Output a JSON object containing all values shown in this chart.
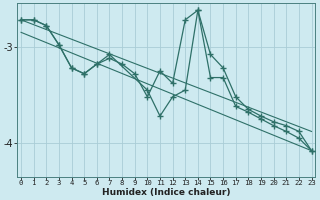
{
  "xlabel": "Humidex (Indice chaleur)",
  "background_color": "#ceeaf0",
  "grid_color": "#aacdd6",
  "line_color": "#2e7068",
  "x_ticks": [
    0,
    1,
    2,
    3,
    4,
    5,
    6,
    7,
    8,
    9,
    10,
    11,
    12,
    13,
    14,
    15,
    16,
    17,
    18,
    19,
    20,
    21,
    22,
    23
  ],
  "yticks": [
    -3,
    -4
  ],
  "ylim": [
    -4.35,
    -2.55
  ],
  "xlim": [
    -0.3,
    23.3
  ],
  "series1_x": [
    0,
    1,
    2,
    3,
    4,
    5,
    6,
    7,
    8,
    9,
    10,
    11,
    12,
    13,
    14,
    15,
    16,
    17,
    18,
    19,
    20,
    21,
    22,
    23
  ],
  "series1_y": [
    -2.72,
    -2.72,
    -2.78,
    -2.98,
    -3.22,
    -3.28,
    -3.18,
    -3.12,
    -3.18,
    -3.28,
    -3.52,
    -3.25,
    -3.38,
    -2.72,
    -2.62,
    -3.08,
    -3.22,
    -3.52,
    -3.65,
    -3.72,
    -3.78,
    -3.82,
    -3.88,
    -4.08
  ],
  "series2_x": [
    0,
    1,
    2,
    3,
    4,
    5,
    6,
    7,
    10,
    11,
    12,
    13,
    14,
    15,
    16,
    17,
    18,
    19,
    20,
    21,
    22,
    23
  ],
  "series2_y": [
    -2.72,
    -2.72,
    -2.78,
    -2.98,
    -3.22,
    -3.28,
    -3.18,
    -3.08,
    -3.45,
    -3.72,
    -3.52,
    -3.45,
    -2.62,
    -3.32,
    -3.32,
    -3.62,
    -3.68,
    -3.75,
    -3.82,
    -3.88,
    -3.95,
    -4.08
  ],
  "trend1_x": [
    0,
    23
  ],
  "trend1_y": [
    -2.72,
    -3.88
  ],
  "trend2_x": [
    0,
    23
  ],
  "trend2_y": [
    -2.85,
    -4.08
  ]
}
